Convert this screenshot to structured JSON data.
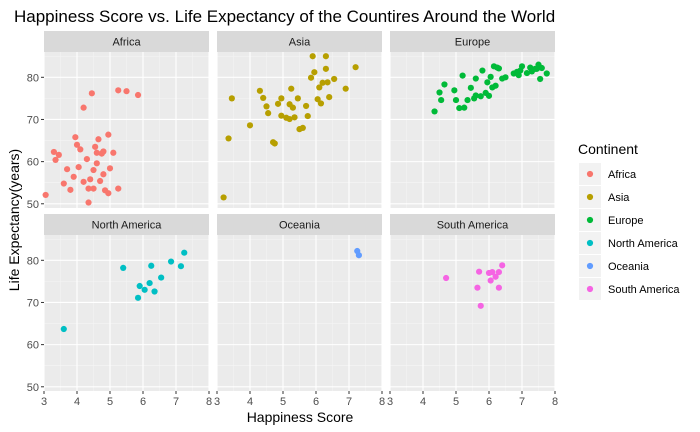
{
  "chart_data": {
    "type": "scatter",
    "title": "Happiness Score vs. Life Expectancy of the Countires Around the World",
    "xlabel": "Happiness Score",
    "ylabel": "Life Expectancy(years)",
    "xlim": [
      3,
      8
    ],
    "ylim": [
      49,
      86
    ],
    "x_ticks": [
      3,
      4,
      5,
      6,
      7,
      8
    ],
    "y_ticks": [
      50,
      60,
      70,
      80
    ],
    "grid": true,
    "facet_layout": "2 rows x 3 columns, shared axes",
    "legend": {
      "title": "Continent",
      "position": "right"
    },
    "series": [
      {
        "name": "Africa",
        "color": "#F8766D",
        "points": [
          [
            3.05,
            52.1
          ],
          [
            3.3,
            62.3
          ],
          [
            3.35,
            60.4
          ],
          [
            3.45,
            61.6
          ],
          [
            3.6,
            54.8
          ],
          [
            3.7,
            58.2
          ],
          [
            3.8,
            53.3
          ],
          [
            3.9,
            56.4
          ],
          [
            3.95,
            65.8
          ],
          [
            4.0,
            64.0
          ],
          [
            4.05,
            58.7
          ],
          [
            4.1,
            62.9
          ],
          [
            4.2,
            72.8
          ],
          [
            4.2,
            55.2
          ],
          [
            4.3,
            60.6
          ],
          [
            4.35,
            53.6
          ],
          [
            4.35,
            50.3
          ],
          [
            4.4,
            55.8
          ],
          [
            4.45,
            76.2
          ],
          [
            4.5,
            58.0
          ],
          [
            4.5,
            53.6
          ],
          [
            4.55,
            63.5
          ],
          [
            4.6,
            59.6
          ],
          [
            4.6,
            62.1
          ],
          [
            4.65,
            65.3
          ],
          [
            4.7,
            55.4
          ],
          [
            4.75,
            61.9
          ],
          [
            4.8,
            57.0
          ],
          [
            4.8,
            62.4
          ],
          [
            4.85,
            53.2
          ],
          [
            4.95,
            52.5
          ],
          [
            4.95,
            66.4
          ],
          [
            5.0,
            58.4
          ],
          [
            5.1,
            62.1
          ],
          [
            5.25,
            76.9
          ],
          [
            5.25,
            53.6
          ],
          [
            5.5,
            76.7
          ],
          [
            5.85,
            75.8
          ]
        ]
      },
      {
        "name": "Asia",
        "color": "#B79F00",
        "points": [
          [
            3.2,
            51.5
          ],
          [
            3.35,
            65.5
          ],
          [
            3.45,
            75.0
          ],
          [
            4.0,
            68.6
          ],
          [
            4.3,
            76.8
          ],
          [
            4.4,
            75.1
          ],
          [
            4.5,
            73.1
          ],
          [
            4.55,
            71.5
          ],
          [
            4.7,
            64.6
          ],
          [
            4.75,
            64.3
          ],
          [
            4.85,
            73.7
          ],
          [
            4.95,
            70.9
          ],
          [
            4.95,
            75.0
          ],
          [
            5.1,
            70.4
          ],
          [
            5.2,
            73.6
          ],
          [
            5.2,
            70.1
          ],
          [
            5.25,
            77.3
          ],
          [
            5.3,
            72.8
          ],
          [
            5.35,
            70.5
          ],
          [
            5.45,
            75.0
          ],
          [
            5.5,
            67.7
          ],
          [
            5.6,
            68.0
          ],
          [
            5.7,
            73.2
          ],
          [
            5.75,
            70.8
          ],
          [
            5.85,
            79.9
          ],
          [
            5.9,
            85.0
          ],
          [
            5.95,
            81.2
          ],
          [
            6.05,
            74.8
          ],
          [
            6.1,
            77.6
          ],
          [
            6.15,
            73.8
          ],
          [
            6.2,
            78.7
          ],
          [
            6.3,
            82.0
          ],
          [
            6.3,
            85.0
          ],
          [
            6.35,
            78.8
          ],
          [
            6.4,
            75.3
          ],
          [
            6.55,
            79.6
          ],
          [
            6.9,
            77.3
          ],
          [
            7.2,
            82.4
          ]
        ]
      },
      {
        "name": "Europe",
        "color": "#00BA38",
        "points": [
          [
            4.35,
            71.9
          ],
          [
            4.5,
            76.4
          ],
          [
            4.55,
            74.6
          ],
          [
            4.65,
            78.3
          ],
          [
            4.95,
            76.9
          ],
          [
            5.0,
            74.6
          ],
          [
            5.1,
            72.7
          ],
          [
            5.2,
            80.4
          ],
          [
            5.25,
            72.8
          ],
          [
            5.35,
            74.6
          ],
          [
            5.45,
            77.5
          ],
          [
            5.55,
            75.0
          ],
          [
            5.6,
            79.7
          ],
          [
            5.6,
            75.7
          ],
          [
            5.75,
            75.5
          ],
          [
            5.8,
            81.6
          ],
          [
            5.9,
            76.3
          ],
          [
            5.95,
            78.8
          ],
          [
            6.0,
            75.6
          ],
          [
            6.05,
            80.1
          ],
          [
            6.1,
            77.6
          ],
          [
            6.15,
            82.6
          ],
          [
            6.2,
            78.0
          ],
          [
            6.25,
            82.3
          ],
          [
            6.3,
            82.1
          ],
          [
            6.4,
            79.7
          ],
          [
            6.5,
            80.0
          ],
          [
            6.75,
            80.9
          ],
          [
            6.85,
            81.3
          ],
          [
            6.9,
            80.5
          ],
          [
            6.95,
            81.6
          ],
          [
            7.0,
            82.6
          ],
          [
            7.15,
            81.0
          ],
          [
            7.25,
            82.3
          ],
          [
            7.3,
            81.4
          ],
          [
            7.4,
            82.0
          ],
          [
            7.45,
            82.0
          ],
          [
            7.5,
            83.0
          ],
          [
            7.55,
            79.6
          ],
          [
            7.6,
            82.2
          ],
          [
            7.75,
            80.9
          ]
        ]
      },
      {
        "name": "North America",
        "color": "#00BFC4",
        "points": [
          [
            3.6,
            63.7
          ],
          [
            5.4,
            78.2
          ],
          [
            5.85,
            71.1
          ],
          [
            5.9,
            73.9
          ],
          [
            6.05,
            73.0
          ],
          [
            6.2,
            74.6
          ],
          [
            6.25,
            78.7
          ],
          [
            6.35,
            72.6
          ],
          [
            6.55,
            75.9
          ],
          [
            6.85,
            79.7
          ],
          [
            7.15,
            78.6
          ],
          [
            7.25,
            81.8
          ]
        ]
      },
      {
        "name": "Oceania",
        "color": "#619CFF",
        "points": [
          [
            7.25,
            82.2
          ],
          [
            7.3,
            81.2
          ]
        ]
      },
      {
        "name": "South America",
        "color": "#F564E3",
        "points": [
          [
            4.7,
            75.8
          ],
          [
            5.65,
            73.5
          ],
          [
            5.7,
            77.3
          ],
          [
            5.75,
            69.2
          ],
          [
            6.0,
            77.0
          ],
          [
            6.05,
            75.2
          ],
          [
            6.1,
            77.2
          ],
          [
            6.2,
            76.1
          ],
          [
            6.3,
            73.5
          ],
          [
            6.4,
            78.8
          ],
          [
            6.3,
            77.2
          ]
        ]
      }
    ]
  }
}
